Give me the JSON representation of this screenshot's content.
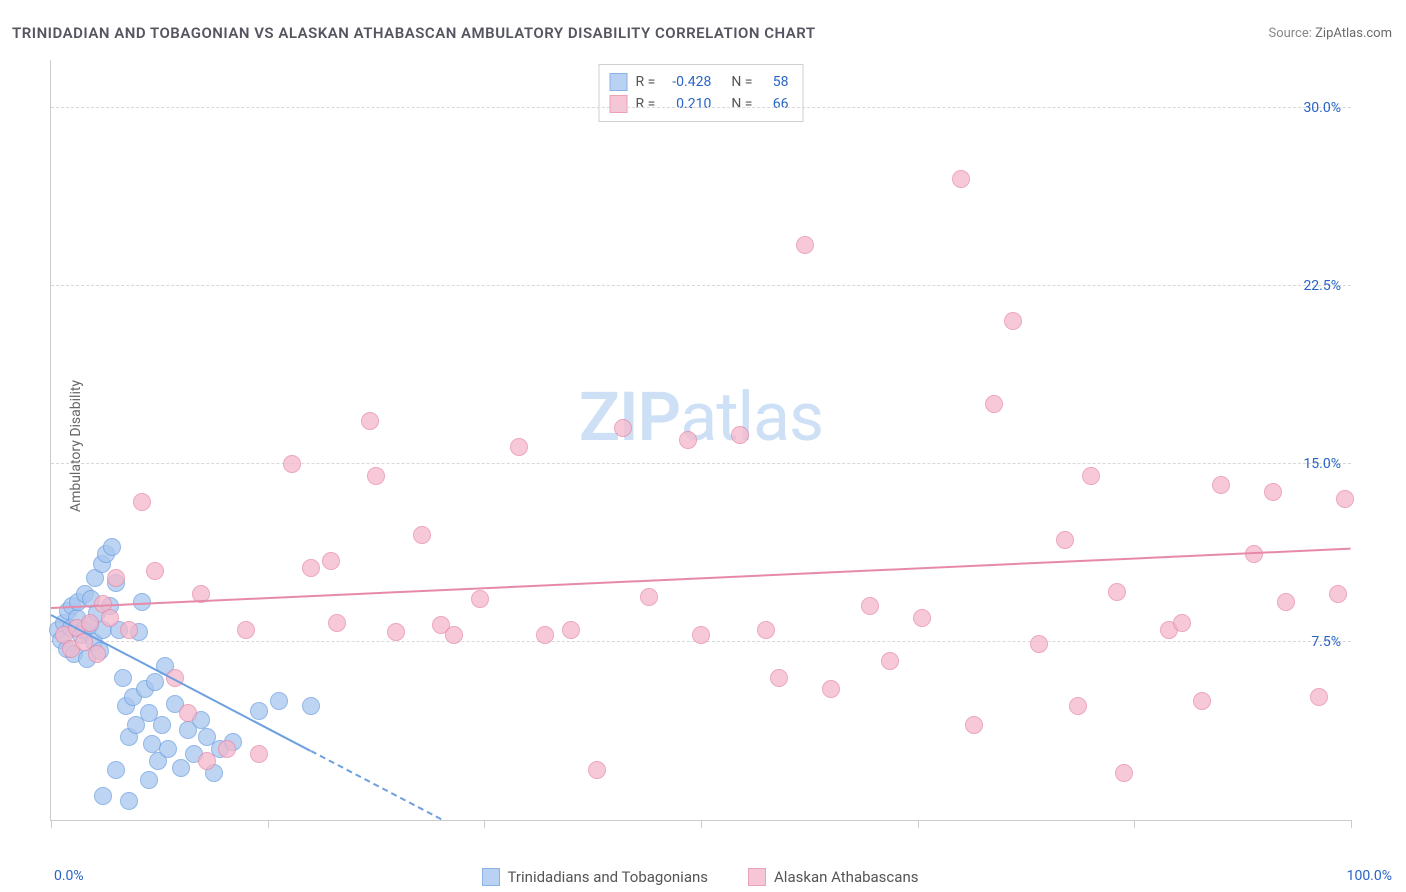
{
  "title": "TRINIDADIAN AND TOBAGONIAN VS ALASKAN ATHABASCAN AMBULATORY DISABILITY CORRELATION CHART",
  "source_label": "Source: ",
  "source_value": "ZipAtlas.com",
  "ylabel": "Ambulatory Disability",
  "watermark_bold": "ZIP",
  "watermark_light": "atlas",
  "chart": {
    "type": "scatter",
    "xlim": [
      0,
      100
    ],
    "ylim": [
      0,
      32
    ],
    "y_grid": [
      7.5,
      15.0,
      22.5,
      30.0
    ],
    "y_tick_labels": [
      "7.5%",
      "15.0%",
      "22.5%",
      "30.0%"
    ],
    "x_ticks": [
      0,
      16.67,
      33.33,
      50,
      66.67,
      83.33,
      100
    ],
    "x_tick_labels_left": "0.0%",
    "x_tick_labels_right": "100.0%",
    "background_color": "#ffffff",
    "grid_color": "#d8d8d8",
    "axis_color": "#cccccc",
    "label_color": "#2864c7",
    "title_fontsize": 15,
    "label_fontsize": 14,
    "marker_radius": 9,
    "marker_stroke_width": 1.2,
    "marker_fill_opacity": 0.18,
    "series": [
      {
        "name": "Trinidadians and Tobagonians",
        "color_stroke": "#6ea0e0",
        "color_fill": "#a8c6ef",
        "R": "-0.428",
        "N": "58",
        "trend": {
          "x1": 0,
          "y1": 8.6,
          "x2": 30,
          "y2": 0,
          "solid_until_x": 20
        },
        "points": [
          [
            0.5,
            8.0
          ],
          [
            0.8,
            7.6
          ],
          [
            1.0,
            8.3
          ],
          [
            1.2,
            7.2
          ],
          [
            1.3,
            8.8
          ],
          [
            1.5,
            8.1
          ],
          [
            1.6,
            9.0
          ],
          [
            1.8,
            7.0
          ],
          [
            2.0,
            8.5
          ],
          [
            2.1,
            9.2
          ],
          [
            2.3,
            7.8
          ],
          [
            2.5,
            8.0
          ],
          [
            2.6,
            9.5
          ],
          [
            2.8,
            6.8
          ],
          [
            3.0,
            8.2
          ],
          [
            3.1,
            9.3
          ],
          [
            3.3,
            7.5
          ],
          [
            3.4,
            10.2
          ],
          [
            3.5,
            8.7
          ],
          [
            3.8,
            7.1
          ],
          [
            3.9,
            10.8
          ],
          [
            4.0,
            8.0
          ],
          [
            4.2,
            11.2
          ],
          [
            4.5,
            9.0
          ],
          [
            4.7,
            11.5
          ],
          [
            5.0,
            10.0
          ],
          [
            5.2,
            8.0
          ],
          [
            5.5,
            6.0
          ],
          [
            5.8,
            4.8
          ],
          [
            6.0,
            3.5
          ],
          [
            6.3,
            5.2
          ],
          [
            6.5,
            4.0
          ],
          [
            6.8,
            7.9
          ],
          [
            7.0,
            9.2
          ],
          [
            7.2,
            5.5
          ],
          [
            7.5,
            4.5
          ],
          [
            7.8,
            3.2
          ],
          [
            8.0,
            5.8
          ],
          [
            8.2,
            2.5
          ],
          [
            8.5,
            4.0
          ],
          [
            8.8,
            6.5
          ],
          [
            9.0,
            3.0
          ],
          [
            9.5,
            4.9
          ],
          [
            10.0,
            2.2
          ],
          [
            10.5,
            3.8
          ],
          [
            11.0,
            2.8
          ],
          [
            11.5,
            4.2
          ],
          [
            12.0,
            3.5
          ],
          [
            12.5,
            2.0
          ],
          [
            13.0,
            3.0
          ],
          [
            4.0,
            1.0
          ],
          [
            5.0,
            2.1
          ],
          [
            6.0,
            0.8
          ],
          [
            7.5,
            1.7
          ],
          [
            14.0,
            3.3
          ],
          [
            16.0,
            4.6
          ],
          [
            17.5,
            5.0
          ],
          [
            20.0,
            4.8
          ]
        ]
      },
      {
        "name": "Alaskan Athabascans",
        "color_stroke": "#e68aa8",
        "color_fill": "#f5b8cc",
        "R": "0.210",
        "N": "66",
        "trend": {
          "x1": 0,
          "y1": 8.9,
          "x2": 100,
          "y2": 11.4
        },
        "points": [
          [
            1.0,
            7.8
          ],
          [
            1.5,
            7.2
          ],
          [
            2.0,
            8.1
          ],
          [
            2.5,
            7.5
          ],
          [
            3.0,
            8.3
          ],
          [
            3.5,
            7.0
          ],
          [
            4.0,
            9.1
          ],
          [
            4.5,
            8.5
          ],
          [
            5.0,
            10.2
          ],
          [
            6.0,
            8.0
          ],
          [
            7.0,
            13.4
          ],
          [
            8.0,
            10.5
          ],
          [
            9.5,
            6.0
          ],
          [
            10.5,
            4.5
          ],
          [
            11.5,
            9.5
          ],
          [
            12.0,
            2.5
          ],
          [
            13.5,
            3.0
          ],
          [
            15.0,
            8.0
          ],
          [
            16.0,
            2.8
          ],
          [
            18.5,
            15.0
          ],
          [
            20.0,
            10.6
          ],
          [
            21.5,
            10.9
          ],
          [
            22.0,
            8.3
          ],
          [
            24.5,
            16.8
          ],
          [
            25.0,
            14.5
          ],
          [
            26.5,
            7.9
          ],
          [
            28.5,
            12.0
          ],
          [
            30.0,
            8.2
          ],
          [
            31.0,
            7.8
          ],
          [
            33.0,
            9.3
          ],
          [
            36.0,
            15.7
          ],
          [
            38.0,
            7.8
          ],
          [
            40.0,
            8.0
          ],
          [
            42.0,
            2.1
          ],
          [
            44.0,
            16.5
          ],
          [
            46.0,
            9.4
          ],
          [
            49.0,
            16.0
          ],
          [
            50.0,
            7.8
          ],
          [
            53.0,
            16.2
          ],
          [
            55.0,
            8.0
          ],
          [
            56.0,
            6.0
          ],
          [
            58.0,
            24.2
          ],
          [
            60.0,
            5.5
          ],
          [
            63.0,
            9.0
          ],
          [
            64.5,
            6.7
          ],
          [
            67.0,
            8.5
          ],
          [
            70.0,
            27.0
          ],
          [
            71.0,
            4.0
          ],
          [
            72.5,
            17.5
          ],
          [
            74.0,
            21.0
          ],
          [
            76.0,
            7.4
          ],
          [
            78.0,
            11.8
          ],
          [
            79.0,
            4.8
          ],
          [
            80.0,
            14.5
          ],
          [
            82.0,
            9.6
          ],
          [
            82.5,
            2.0
          ],
          [
            86.0,
            8.0
          ],
          [
            87.0,
            8.3
          ],
          [
            88.5,
            5.0
          ],
          [
            90.0,
            14.1
          ],
          [
            92.5,
            11.2
          ],
          [
            94.0,
            13.8
          ],
          [
            95.0,
            9.2
          ],
          [
            97.5,
            5.2
          ],
          [
            99.0,
            9.5
          ],
          [
            99.5,
            13.5
          ]
        ]
      }
    ]
  },
  "legend": {
    "items": [
      "Trinidadians and Tobagonians",
      "Alaskan Athabascans"
    ]
  }
}
